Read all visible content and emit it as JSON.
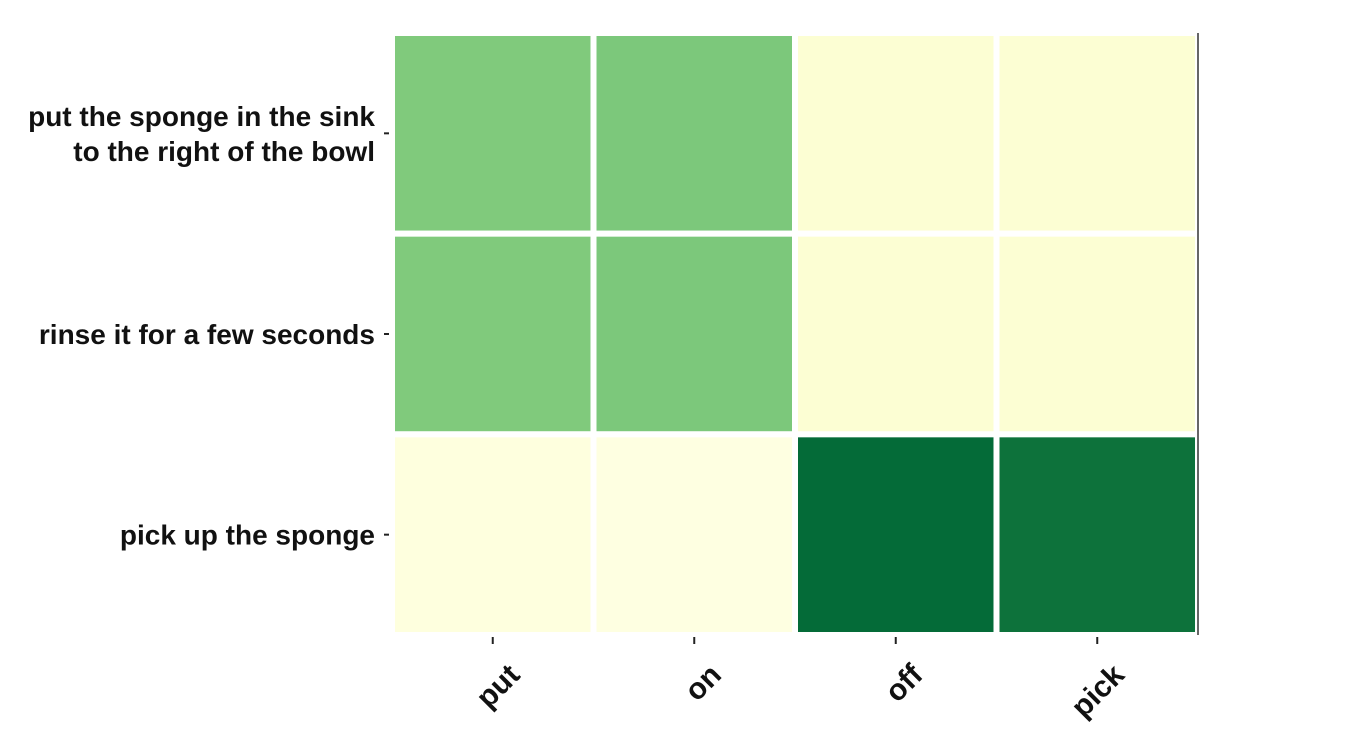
{
  "chart_data": {
    "type": "heatmap",
    "title": "",
    "xlabel": "",
    "ylabel": "",
    "colormap": "YlGn",
    "value_range": [
      0,
      1
    ],
    "colorbar": false,
    "x_categories": [
      "put",
      "on",
      "off",
      "pick"
    ],
    "y_categories": [
      [
        "put the sponge in the sink",
        "to the right of the bowl"
      ],
      [
        "rinse it for a few seconds"
      ],
      [
        "pick up the sponge"
      ]
    ],
    "values": [
      [
        0.48,
        0.49,
        0.05,
        0.05
      ],
      [
        0.48,
        0.49,
        0.05,
        0.05
      ],
      [
        0.02,
        0.01,
        0.86,
        0.83
      ]
    ],
    "colors": {
      "cell_border": "#ffffff",
      "tick": "#222222",
      "text": "#111111"
    }
  }
}
